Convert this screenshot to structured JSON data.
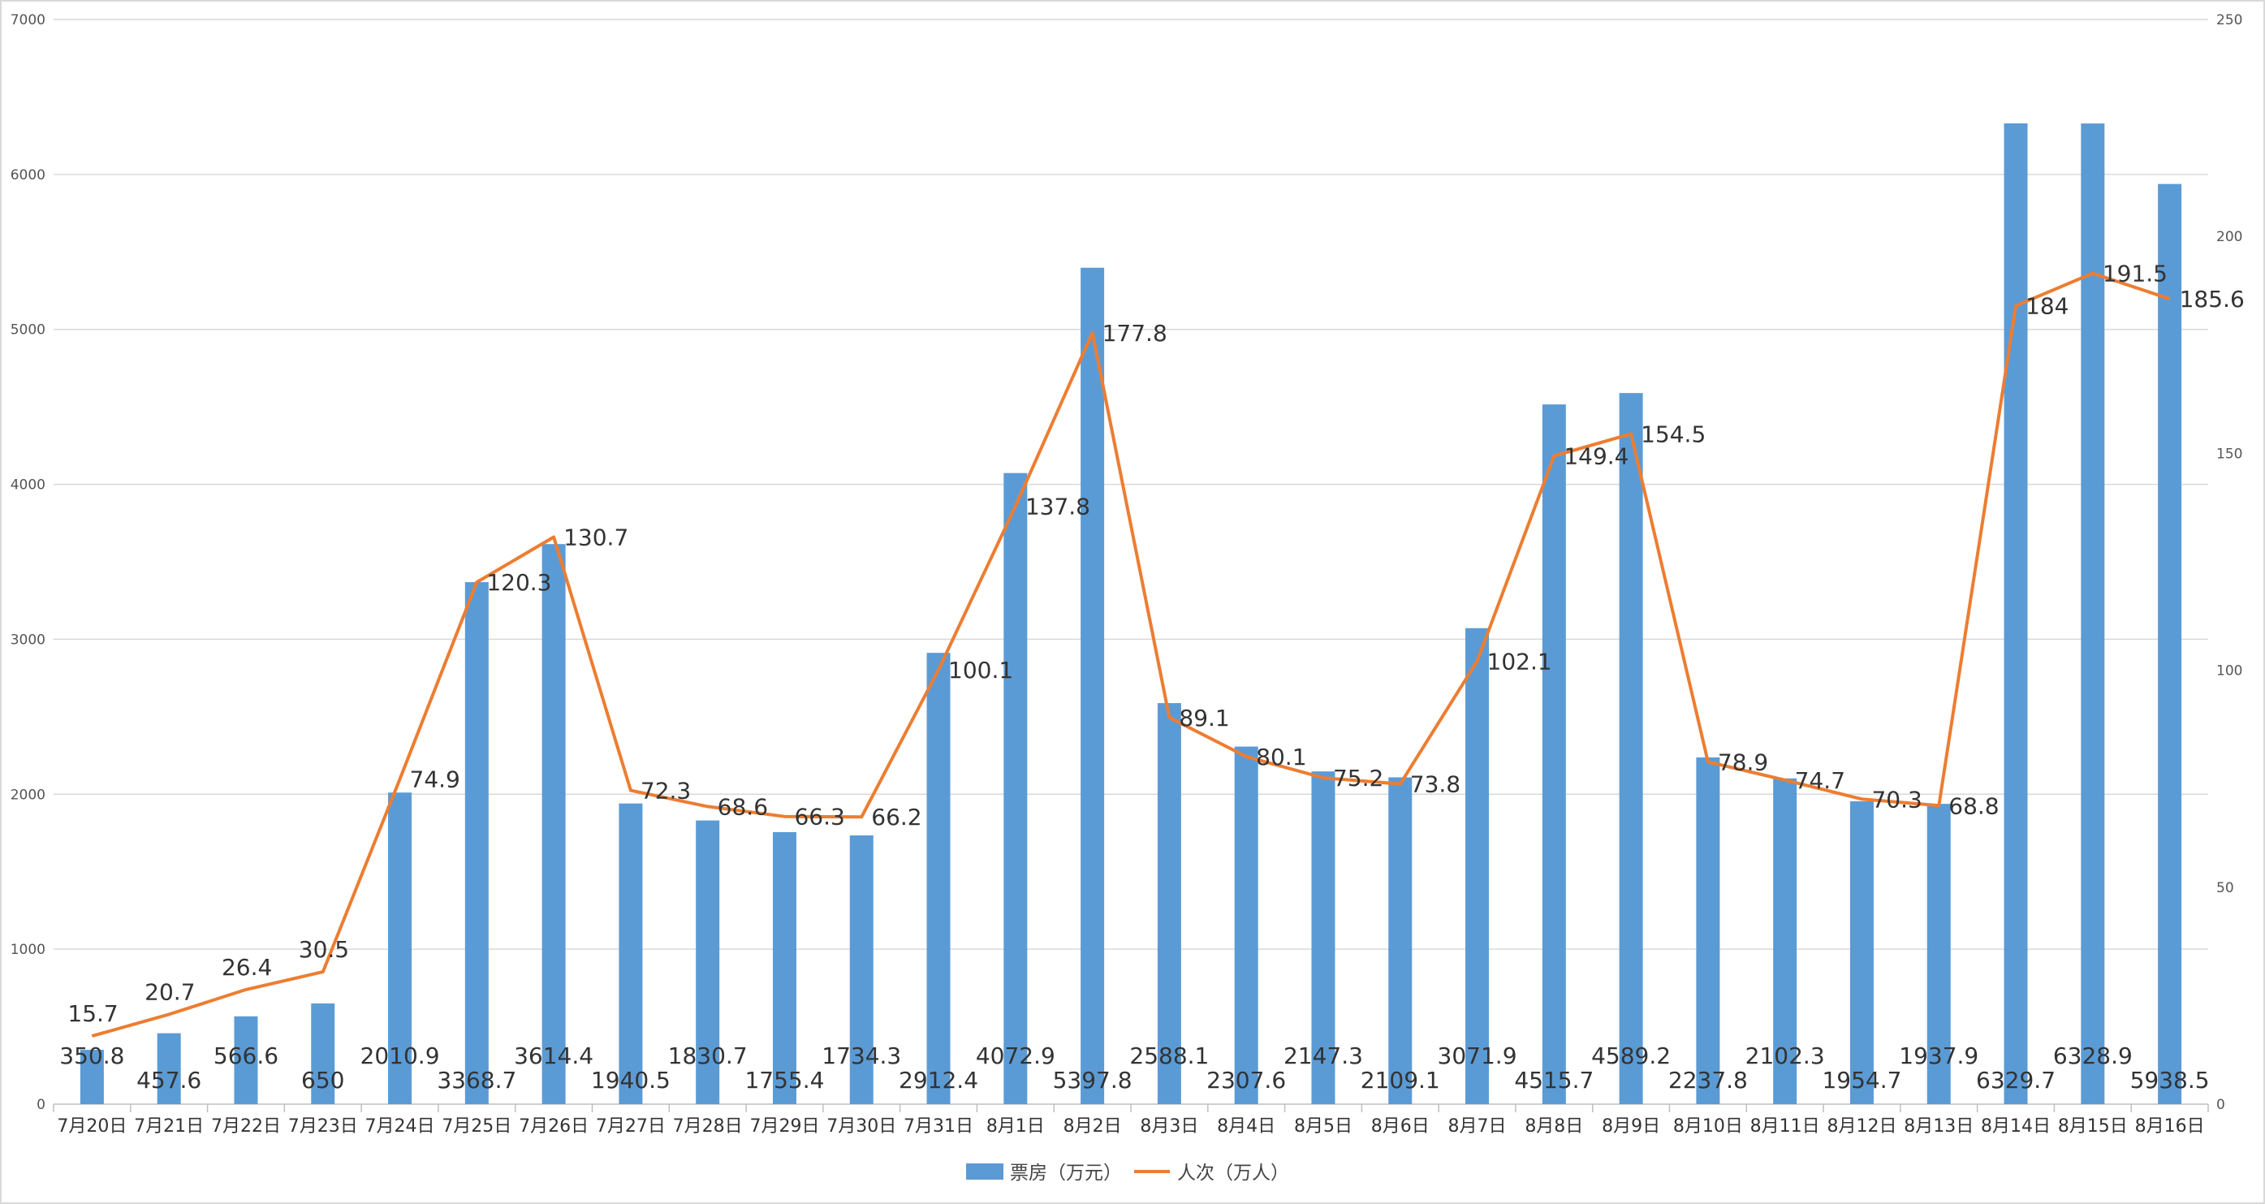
{
  "chart_data": {
    "type": "bar+line",
    "title": "",
    "categories": [
      "7月20日",
      "7月21日",
      "7月22日",
      "7月23日",
      "7月24日",
      "7月25日",
      "7月26日",
      "7月27日",
      "7月28日",
      "7月29日",
      "7月30日",
      "7月31日",
      "8月1日",
      "8月2日",
      "8月3日",
      "8月4日",
      "8月5日",
      "8月6日",
      "8月7日",
      "8月8日",
      "8月9日",
      "8月10日",
      "8月11日",
      "8月12日",
      "8月13日",
      "8月14日",
      "8月15日",
      "8月16日"
    ],
    "series": [
      {
        "name": "票房（万元）",
        "type": "bar",
        "axis": "left",
        "color": "#5B9BD5",
        "values": [
          350.8,
          457.6,
          566.6,
          650,
          2010.9,
          3368.7,
          3614.4,
          1940.5,
          1830.7,
          1755.4,
          1734.3,
          2912.4,
          4072.9,
          5397.8,
          2588.1,
          2307.6,
          2147.3,
          2109.1,
          3071.9,
          4515.7,
          4589.2,
          2237.8,
          2102.3,
          1954.7,
          1937.9,
          6329.7,
          6328.9,
          5938.5
        ],
        "labels": [
          "350.8",
          "457.6",
          "566.6",
          "650",
          "2010.9",
          "3368.7",
          "3614.4",
          "1940.5",
          "1830.7",
          "1755.4",
          "1734.3",
          "2912.4",
          "4072.9",
          "5397.8",
          "2588.1",
          "2307.6",
          "2147.3",
          "2109.1",
          "3071.9",
          "4515.7",
          "4589.2",
          "2237.8",
          "2102.3",
          "1954.7",
          "1937.9",
          "6329.7",
          "6328.9",
          "5938.5"
        ]
      },
      {
        "name": "人次（万人）",
        "type": "line",
        "axis": "right",
        "color": "#ED7D31",
        "values": [
          15.7,
          20.7,
          26.4,
          30.5,
          74.9,
          120.3,
          130.7,
          72.3,
          68.6,
          66.3,
          66.2,
          100.1,
          137.8,
          177.8,
          89.1,
          80.1,
          75.2,
          73.8,
          102.1,
          149.4,
          154.5,
          78.9,
          74.7,
          70.3,
          68.8,
          184,
          191.5,
          185.6
        ],
        "labels": [
          "15.7",
          "20.7",
          "26.4",
          "30.5",
          "74.9",
          "120.3",
          "130.7",
          "72.3",
          "68.6",
          "66.3",
          "66.2",
          "100.1",
          "137.8",
          "177.8",
          "89.1",
          "80.1",
          "75.2",
          "73.8",
          "102.1",
          "149.4",
          "154.5",
          "78.9",
          "74.7",
          "70.3",
          "68.8",
          "184",
          "191.5",
          "185.6"
        ]
      }
    ],
    "y_left": {
      "min": 0,
      "max": 7000,
      "ticks": [
        "0",
        "1000",
        "2000",
        "3000",
        "4000",
        "5000",
        "6000",
        "7000"
      ]
    },
    "y_right": {
      "min": 0,
      "max": 250,
      "ticks": [
        "0",
        "50",
        "100",
        "150",
        "200",
        "250"
      ]
    },
    "grid": true,
    "legend": {
      "position": "bottom-center"
    }
  }
}
